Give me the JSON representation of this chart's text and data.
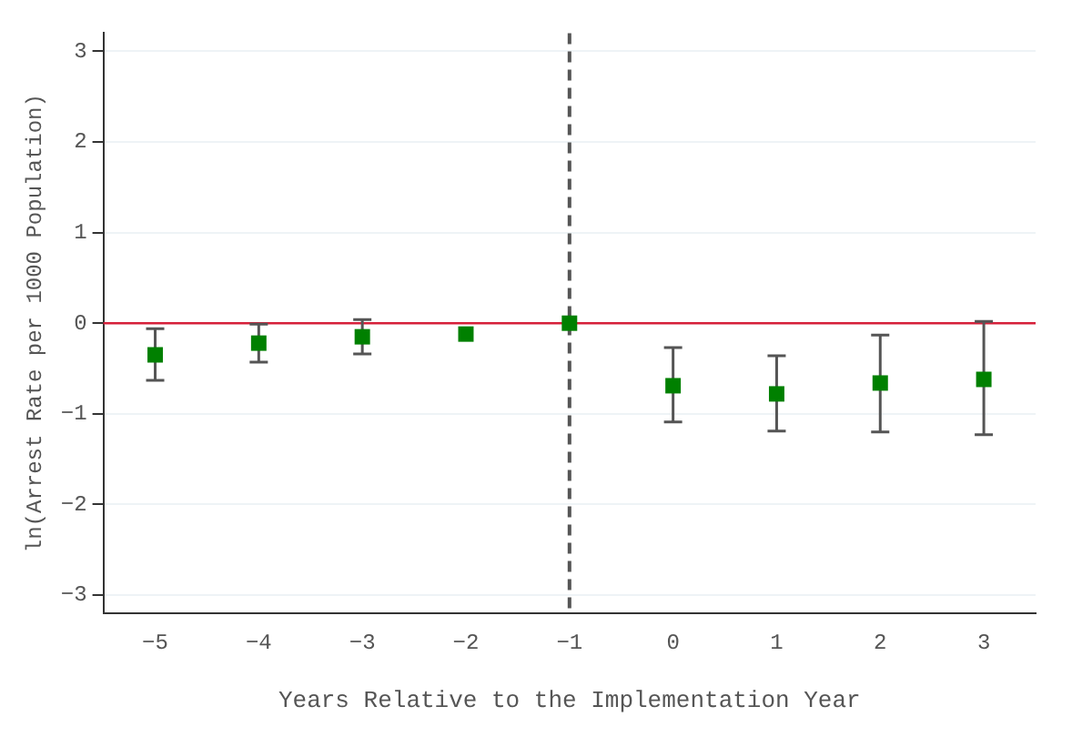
{
  "chart_data": {
    "type": "scatter",
    "xlabel": "Years Relative to the Implementation Year",
    "ylabel": "ln(Arrest Rate per 1000 Population)",
    "x": [
      -5,
      -4,
      -3,
      -2,
      -1,
      0,
      1,
      2,
      3
    ],
    "series": [
      {
        "color": "#008000",
        "values": [
          -0.35,
          -0.22,
          -0.15,
          -0.12,
          0,
          -0.69,
          -0.78,
          -0.66,
          -0.62
        ],
        "errors": [
          [
            -0.63,
            -0.06
          ],
          [
            -0.43,
            -0.01
          ],
          [
            -0.34,
            0.04
          ],
          null,
          null,
          [
            -1.09,
            -0.27
          ],
          [
            -1.19,
            -0.36
          ],
          [
            -1.2,
            -0.13
          ],
          [
            -1.23,
            0.02
          ]
        ]
      }
    ],
    "marker": "square",
    "grid": "y",
    "legend": false,
    "xlim": [
      -5.5,
      3.5
    ],
    "xticks": [
      {
        "value": -5,
        "label": "−5"
      },
      {
        "value": -4,
        "label": "−4"
      },
      {
        "value": -3,
        "label": "−3"
      },
      {
        "value": -2,
        "label": "−2"
      },
      {
        "value": -1,
        "label": "−1"
      },
      0,
      1,
      2,
      3
    ],
    "ylim": [
      -3.2,
      3.2
    ],
    "yticks": [
      {
        "value": -3,
        "label": "−3"
      },
      {
        "value": -2,
        "label": "−2"
      },
      {
        "value": -1,
        "label": "−1"
      },
      0,
      1,
      2,
      3
    ],
    "ref_lines": [
      {
        "axis": "y",
        "value": 0,
        "color": "#d6203a",
        "line_style": "solid"
      },
      {
        "axis": "x",
        "value": -1,
        "color": "#555555",
        "line_style": "dashed"
      }
    ]
  }
}
